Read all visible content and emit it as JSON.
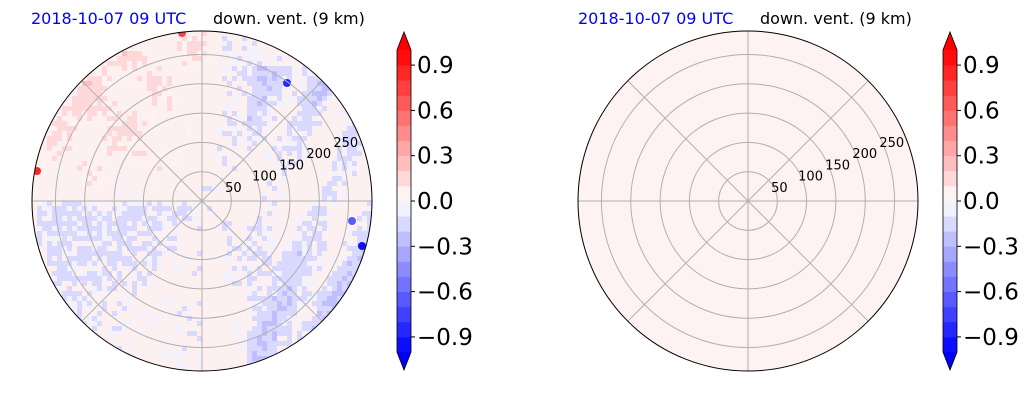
{
  "chart_data": [
    {
      "type": "heatmap",
      "projection": "polar",
      "title_time": "2018-10-07 09 UTC",
      "title_variable": "down. vent. (9 km)",
      "radial_ticks": [
        "50",
        "100",
        "150",
        "200",
        "250"
      ],
      "radial_tick_values": [
        50,
        100,
        150,
        200,
        250
      ],
      "radial_max": 290,
      "angular_gridlines_deg": [
        0,
        45,
        90,
        135,
        180,
        225,
        270,
        315
      ],
      "field": "noisy",
      "colorbar": {
        "ticks": [
          "0.9",
          "0.6",
          "0.3",
          "0.0",
          "−0.3",
          "−0.6",
          "−0.9"
        ],
        "tick_values": [
          0.9,
          0.6,
          0.3,
          0.0,
          -0.3,
          -0.6,
          -0.9
        ],
        "range": [
          -1.0,
          1.0
        ],
        "levels": 20,
        "extend": "both",
        "colormap": "bwr"
      }
    },
    {
      "type": "heatmap",
      "projection": "polar",
      "title_time": "2018-10-07 09 UTC",
      "title_variable": "down. vent. (9 km)",
      "radial_ticks": [
        "50",
        "100",
        "150",
        "200",
        "250"
      ],
      "radial_tick_values": [
        50,
        100,
        150,
        200,
        250
      ],
      "radial_max": 290,
      "angular_gridlines_deg": [
        0,
        45,
        90,
        135,
        180,
        225,
        270,
        315
      ],
      "field": "uniform",
      "uniform_value": 0.02,
      "colorbar": {
        "ticks": [
          "0.9",
          "0.6",
          "0.3",
          "0.0",
          "−0.3",
          "−0.6",
          "−0.9"
        ],
        "tick_values": [
          0.9,
          0.6,
          0.3,
          0.0,
          -0.3,
          -0.6,
          -0.9
        ],
        "range": [
          -1.0,
          1.0
        ],
        "levels": 20,
        "extend": "both",
        "colormap": "bwr"
      }
    }
  ]
}
